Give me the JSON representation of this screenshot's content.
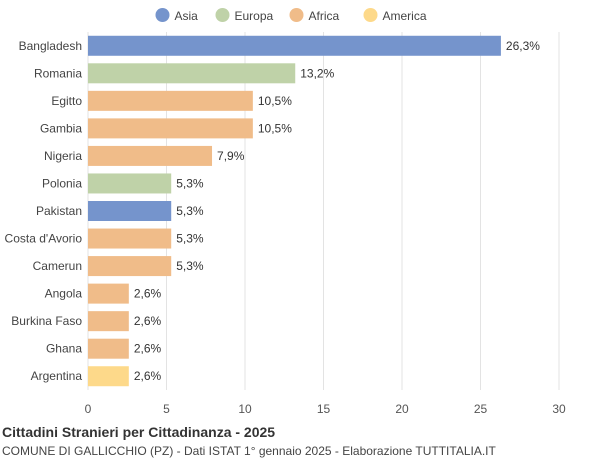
{
  "chart_data": {
    "type": "bar",
    "orientation": "horizontal",
    "title": "Cittadini Stranieri per Cittadinanza - 2025",
    "subtitle": "COMUNE DI GALLICCHIO (PZ) - Dati ISTAT 1° gennaio 2025 - Elaborazione TUTTITALIA.IT",
    "xlim": [
      0,
      30
    ],
    "xticks": [
      0,
      5,
      10,
      15,
      20,
      25,
      30
    ],
    "grid": true,
    "legend_position": "top",
    "legend": [
      {
        "name": "Asia",
        "color": "#7594cc"
      },
      {
        "name": "Europa",
        "color": "#bfd2a8"
      },
      {
        "name": "Africa",
        "color": "#f0bc89"
      },
      {
        "name": "America",
        "color": "#fdd98a"
      }
    ],
    "categories": [
      "Bangladesh",
      "Romania",
      "Egitto",
      "Gambia",
      "Nigeria",
      "Polonia",
      "Pakistan",
      "Costa d'Avorio",
      "Camerun",
      "Angola",
      "Burkina Faso",
      "Ghana",
      "Argentina"
    ],
    "values": [
      26.3,
      13.2,
      10.5,
      10.5,
      7.9,
      5.3,
      5.3,
      5.3,
      5.3,
      2.6,
      2.6,
      2.6,
      2.6
    ],
    "value_labels": [
      "26,3%",
      "13,2%",
      "10,5%",
      "10,5%",
      "7,9%",
      "5,3%",
      "5,3%",
      "5,3%",
      "5,3%",
      "2,6%",
      "2,6%",
      "2,6%",
      "2,6%"
    ],
    "groups": [
      "Asia",
      "Europa",
      "Africa",
      "Africa",
      "Africa",
      "Europa",
      "Asia",
      "Africa",
      "Africa",
      "Africa",
      "Africa",
      "Africa",
      "America"
    ]
  }
}
